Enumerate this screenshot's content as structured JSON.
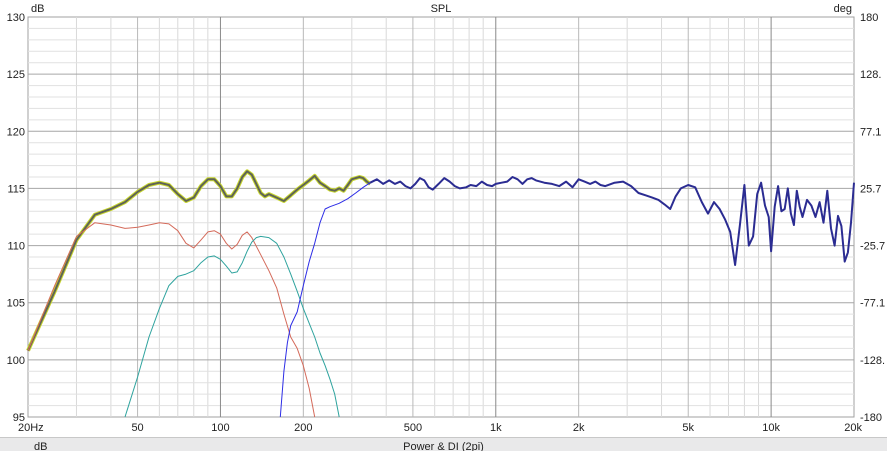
{
  "chart_data": {
    "type": "line",
    "title": "SPL",
    "ylabel_left": "dB",
    "ylabel_right": "deg",
    "x_scale": "log",
    "xlim": [
      20,
      20000
    ],
    "ylim": [
      95,
      130
    ],
    "y2lim": [
      -180,
      180
    ],
    "x_ticks": [
      {
        "v": 20,
        "label": "20Hz"
      },
      {
        "v": 50,
        "label": "50"
      },
      {
        "v": 100,
        "label": "100"
      },
      {
        "v": 200,
        "label": "200"
      },
      {
        "v": 500,
        "label": "500"
      },
      {
        "v": 1000,
        "label": "1k"
      },
      {
        "v": 2000,
        "label": "2k"
      },
      {
        "v": 5000,
        "label": "5k"
      },
      {
        "v": 10000,
        "label": "10k"
      },
      {
        "v": 20000,
        "label": "20k"
      }
    ],
    "y_ticks": [
      {
        "v": 95,
        "label": "95"
      },
      {
        "v": 100,
        "label": "100"
      },
      {
        "v": 105,
        "label": "105"
      },
      {
        "v": 110,
        "label": "110"
      },
      {
        "v": 115,
        "label": "115"
      },
      {
        "v": 120,
        "label": "120"
      },
      {
        "v": 125,
        "label": "125"
      },
      {
        "v": 130,
        "label": "130"
      }
    ],
    "y2_ticks": [
      {
        "v": 180,
        "label": "180"
      },
      {
        "v": 128.6,
        "label": "128."
      },
      {
        "v": 77.1,
        "label": "77.1"
      },
      {
        "v": 25.7,
        "label": "25.7"
      },
      {
        "v": -25.7,
        "label": "-25.7"
      },
      {
        "v": -77.1,
        "label": "-77.1"
      },
      {
        "v": -128.6,
        "label": "-128."
      },
      {
        "v": -180,
        "label": "-180"
      }
    ],
    "grid": true,
    "series": [
      {
        "color": "#c7d62e",
        "width": 4,
        "points": [
          [
            20,
            100.8
          ],
          [
            25,
            106
          ],
          [
            30,
            110.5
          ],
          [
            35,
            112.7
          ],
          [
            40,
            113.2
          ],
          [
            45,
            113.8
          ],
          [
            50,
            114.7
          ],
          [
            55,
            115.3
          ],
          [
            60,
            115.5
          ],
          [
            65,
            115.3
          ],
          [
            70,
            114.5
          ],
          [
            75,
            113.9
          ],
          [
            80,
            114.2
          ],
          [
            85,
            115.2
          ],
          [
            90,
            115.8
          ],
          [
            95,
            115.8
          ],
          [
            100,
            115.2
          ],
          [
            105,
            114.3
          ],
          [
            110,
            114.3
          ],
          [
            115,
            115
          ],
          [
            120,
            116
          ],
          [
            125,
            116.5
          ],
          [
            130,
            116.2
          ],
          [
            135,
            115.4
          ],
          [
            140,
            114.6
          ],
          [
            145,
            114.3
          ],
          [
            150,
            114.5
          ],
          [
            160,
            114.2
          ],
          [
            170,
            113.9
          ],
          [
            180,
            114.4
          ],
          [
            190,
            114.9
          ],
          [
            200,
            115.3
          ],
          [
            210,
            115.7
          ],
          [
            220,
            116.1
          ],
          [
            230,
            115.5
          ],
          [
            240,
            115.2
          ],
          [
            250,
            114.9
          ],
          [
            260,
            114.8
          ],
          [
            270,
            115
          ],
          [
            280,
            114.8
          ],
          [
            290,
            115.3
          ],
          [
            300,
            115.8
          ],
          [
            310,
            115.9
          ],
          [
            320,
            116
          ],
          [
            330,
            115.9
          ],
          [
            340,
            115.6
          ],
          [
            350,
            115.4
          ]
        ]
      },
      {
        "color": "#5f6356",
        "width": 2,
        "points": [
          [
            20,
            100.8
          ],
          [
            25,
            106
          ],
          [
            30,
            110.5
          ],
          [
            35,
            112.7
          ],
          [
            40,
            113.2
          ],
          [
            45,
            113.8
          ],
          [
            50,
            114.7
          ],
          [
            55,
            115.3
          ],
          [
            60,
            115.5
          ],
          [
            65,
            115.3
          ],
          [
            70,
            114.5
          ],
          [
            75,
            113.9
          ],
          [
            80,
            114.2
          ],
          [
            85,
            115.2
          ],
          [
            90,
            115.8
          ],
          [
            95,
            115.8
          ],
          [
            100,
            115.2
          ],
          [
            105,
            114.3
          ],
          [
            110,
            114.3
          ],
          [
            115,
            115
          ],
          [
            120,
            116
          ],
          [
            125,
            116.5
          ],
          [
            130,
            116.2
          ],
          [
            135,
            115.4
          ],
          [
            140,
            114.6
          ],
          [
            145,
            114.3
          ],
          [
            150,
            114.5
          ],
          [
            160,
            114.2
          ],
          [
            170,
            113.9
          ],
          [
            180,
            114.4
          ],
          [
            190,
            114.9
          ],
          [
            200,
            115.3
          ],
          [
            210,
            115.7
          ],
          [
            220,
            116.1
          ],
          [
            230,
            115.5
          ],
          [
            240,
            115.2
          ],
          [
            250,
            114.9
          ],
          [
            260,
            114.8
          ],
          [
            270,
            115
          ],
          [
            280,
            114.8
          ],
          [
            290,
            115.3
          ],
          [
            300,
            115.8
          ],
          [
            310,
            115.9
          ],
          [
            320,
            116
          ],
          [
            330,
            115.9
          ],
          [
            340,
            115.6
          ],
          [
            350,
            115.4
          ]
        ]
      },
      {
        "color": "#d46a5a",
        "width": 1,
        "points": [
          [
            20,
            100.8
          ],
          [
            25,
            106.5
          ],
          [
            30,
            110.8
          ],
          [
            35,
            112
          ],
          [
            40,
            111.8
          ],
          [
            45,
            111.5
          ],
          [
            50,
            111.6
          ],
          [
            55,
            111.8
          ],
          [
            60,
            112
          ],
          [
            65,
            111.9
          ],
          [
            70,
            111.3
          ],
          [
            75,
            110.2
          ],
          [
            80,
            109.8
          ],
          [
            85,
            110.5
          ],
          [
            90,
            111.2
          ],
          [
            95,
            111.3
          ],
          [
            100,
            111
          ],
          [
            105,
            110.2
          ],
          [
            110,
            109.7
          ],
          [
            115,
            110.1
          ],
          [
            120,
            110.9
          ],
          [
            125,
            111.2
          ],
          [
            130,
            110.7
          ],
          [
            140,
            109.2
          ],
          [
            150,
            107.8
          ],
          [
            160,
            106.3
          ],
          [
            170,
            104
          ],
          [
            180,
            102
          ],
          [
            190,
            101
          ],
          [
            200,
            99.5
          ],
          [
            210,
            97.5
          ],
          [
            220,
            95
          ]
        ]
      },
      {
        "color": "#2ea39e",
        "width": 1,
        "points": [
          [
            45,
            95
          ],
          [
            50,
            98.5
          ],
          [
            55,
            102
          ],
          [
            60,
            104.5
          ],
          [
            65,
            106.5
          ],
          [
            70,
            107.3
          ],
          [
            75,
            107.5
          ],
          [
            80,
            107.8
          ],
          [
            85,
            108.5
          ],
          [
            90,
            109
          ],
          [
            95,
            109.1
          ],
          [
            100,
            108.8
          ],
          [
            105,
            108.2
          ],
          [
            110,
            107.6
          ],
          [
            115,
            107.7
          ],
          [
            120,
            108.5
          ],
          [
            125,
            109.5
          ],
          [
            130,
            110.3
          ],
          [
            135,
            110.7
          ],
          [
            140,
            110.8
          ],
          [
            150,
            110.7
          ],
          [
            160,
            110.2
          ],
          [
            170,
            109
          ],
          [
            180,
            107.5
          ],
          [
            190,
            106
          ],
          [
            200,
            104.5
          ],
          [
            210,
            103.2
          ],
          [
            220,
            102
          ],
          [
            230,
            100.6
          ],
          [
            240,
            99.5
          ],
          [
            250,
            98.3
          ],
          [
            260,
            97
          ],
          [
            270,
            95
          ]
        ]
      },
      {
        "color": "#2d2de6",
        "width": 1,
        "points": [
          [
            165,
            95
          ],
          [
            170,
            99
          ],
          [
            175,
            101.5
          ],
          [
            180,
            103
          ],
          [
            190,
            104.2
          ],
          [
            200,
            106.5
          ],
          [
            210,
            108.6
          ],
          [
            220,
            110.2
          ],
          [
            230,
            112
          ],
          [
            240,
            113.2
          ],
          [
            250,
            113.4
          ],
          [
            270,
            113.7
          ],
          [
            290,
            114.1
          ],
          [
            310,
            114.6
          ],
          [
            330,
            115.1
          ],
          [
            350,
            115.5
          ]
        ]
      },
      {
        "color": "#2b2c92",
        "width": 2,
        "points": [
          [
            350,
            115.5
          ],
          [
            370,
            115.8
          ],
          [
            390,
            115.4
          ],
          [
            410,
            115.7
          ],
          [
            430,
            115.4
          ],
          [
            450,
            115.6
          ],
          [
            470,
            115.2
          ],
          [
            490,
            115
          ],
          [
            510,
            115.4
          ],
          [
            530,
            115.9
          ],
          [
            550,
            115.7
          ],
          [
            570,
            115.1
          ],
          [
            590,
            114.9
          ],
          [
            620,
            115.4
          ],
          [
            650,
            115.9
          ],
          [
            680,
            115.6
          ],
          [
            710,
            115.2
          ],
          [
            740,
            115
          ],
          [
            780,
            115.1
          ],
          [
            810,
            115.3
          ],
          [
            850,
            115.2
          ],
          [
            890,
            115.6
          ],
          [
            930,
            115.3
          ],
          [
            970,
            115.2
          ],
          [
            1000,
            115.4
          ],
          [
            1050,
            115.5
          ],
          [
            1100,
            115.6
          ],
          [
            1150,
            116
          ],
          [
            1200,
            115.8
          ],
          [
            1250,
            115.4
          ],
          [
            1300,
            115.8
          ],
          [
            1350,
            115.9
          ],
          [
            1400,
            115.7
          ],
          [
            1450,
            115.6
          ],
          [
            1500,
            115.5
          ],
          [
            1600,
            115.4
          ],
          [
            1700,
            115.2
          ],
          [
            1800,
            115.6
          ],
          [
            1900,
            115.1
          ],
          [
            2000,
            115.8
          ],
          [
            2100,
            115.6
          ],
          [
            2200,
            115.4
          ],
          [
            2300,
            115.6
          ],
          [
            2400,
            115.3
          ],
          [
            2500,
            115.2
          ],
          [
            2700,
            115.5
          ],
          [
            2900,
            115.6
          ],
          [
            3100,
            115.2
          ],
          [
            3300,
            114.6
          ],
          [
            3500,
            114.4
          ],
          [
            3700,
            114.2
          ],
          [
            3900,
            114
          ],
          [
            4100,
            113.6
          ],
          [
            4300,
            113.2
          ],
          [
            4500,
            114.3
          ],
          [
            4700,
            115
          ],
          [
            5000,
            115.3
          ],
          [
            5300,
            115.1
          ],
          [
            5600,
            113.8
          ],
          [
            5900,
            112.8
          ],
          [
            6200,
            113.8
          ],
          [
            6500,
            113.2
          ],
          [
            6800,
            112.3
          ],
          [
            7100,
            111.2
          ],
          [
            7400,
            108.3
          ],
          [
            7700,
            111.8
          ],
          [
            8000,
            115.3
          ],
          [
            8300,
            110
          ],
          [
            8600,
            110.8
          ],
          [
            8900,
            114.5
          ],
          [
            9200,
            115.5
          ],
          [
            9500,
            113.5
          ],
          [
            9800,
            112.5
          ],
          [
            10000,
            109.5
          ],
          [
            10300,
            113.4
          ],
          [
            10600,
            115.2
          ],
          [
            10900,
            113
          ],
          [
            11200,
            113.2
          ],
          [
            11500,
            115
          ],
          [
            11800,
            112.8
          ],
          [
            12100,
            111.8
          ],
          [
            12400,
            114.8
          ],
          [
            12700,
            113.4
          ],
          [
            13000,
            112.5
          ],
          [
            13500,
            114
          ],
          [
            14000,
            113.5
          ],
          [
            14500,
            112.5
          ],
          [
            15000,
            113.8
          ],
          [
            15500,
            112
          ],
          [
            16000,
            114.8
          ],
          [
            16500,
            111.5
          ],
          [
            17000,
            110
          ],
          [
            17500,
            112.6
          ],
          [
            18000,
            111.7
          ],
          [
            18500,
            108.6
          ],
          [
            19000,
            109.4
          ],
          [
            19500,
            112
          ],
          [
            20000,
            115.5
          ]
        ]
      }
    ]
  },
  "lower_panel": {
    "title": "Power & DI (2pi)",
    "unit_label": "dB"
  }
}
